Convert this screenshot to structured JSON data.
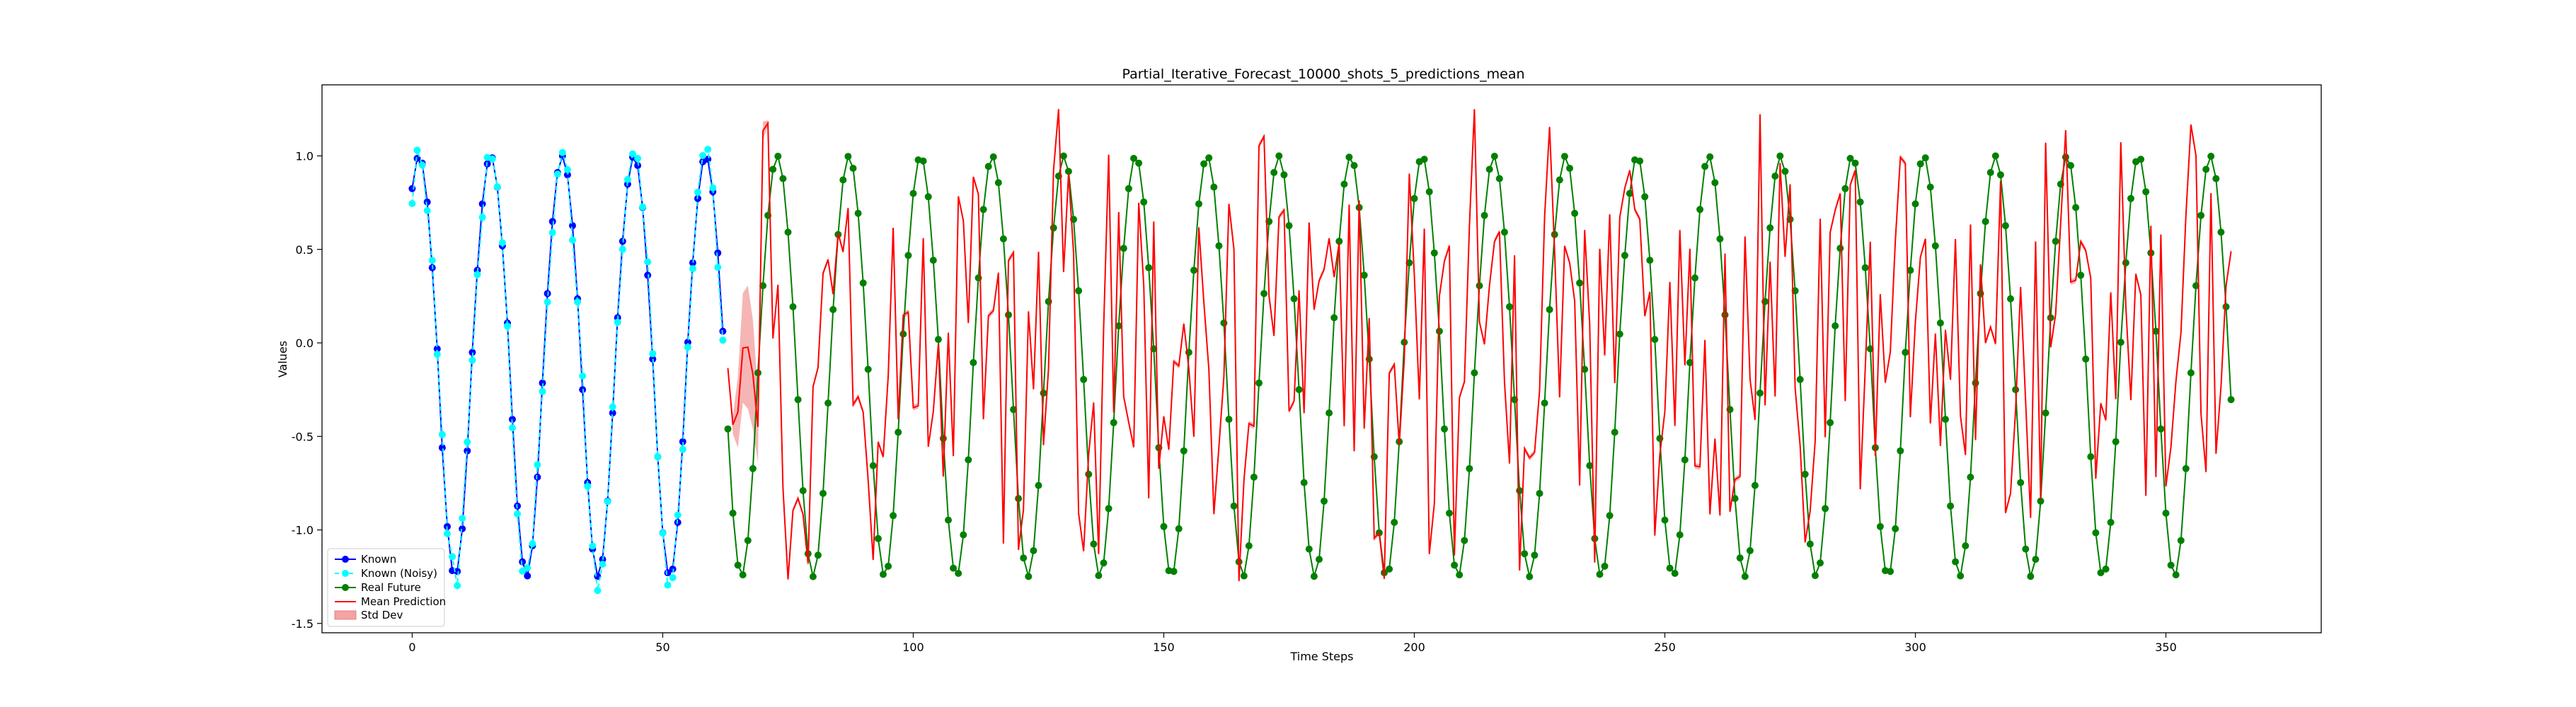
{
  "chart_data": {
    "type": "line",
    "title": "Partial_Iterative_Forecast_10000_shots_5_predictions_mean",
    "xlabel": "Time Steps",
    "ylabel": "Values",
    "xlim": [
      -18,
      381
    ],
    "ylim": [
      -1.55,
      1.38
    ],
    "x_ticks": [
      0,
      50,
      100,
      150,
      200,
      250,
      300,
      350
    ],
    "y_ticks": [
      -1.5,
      -1.0,
      -0.5,
      0.0,
      0.5,
      1.0
    ],
    "grid": false,
    "legend_position": "lower-left",
    "signal_period": 14.3,
    "signal_phase_offset": 0.97,
    "known_x_range": [
      0,
      62
    ],
    "future_x_range": [
      63,
      363
    ],
    "noise_amplitude": 0.08,
    "prediction_peak_amplitude": 1.2,
    "std_dev_band_x_range": [
      64,
      70
    ],
    "colors": {
      "known": "#0000ff",
      "known_noisy": "#00ffff",
      "real_future": "#008000",
      "mean_prediction": "#ff0000",
      "std_dev": "#f4a3a3"
    },
    "series": [
      {
        "name": "Known",
        "marker": "circle",
        "line": "solid",
        "color": "#0000ff"
      },
      {
        "name": "Known (Noisy)",
        "marker": "circle",
        "line": "dashed",
        "color": "#00ffff"
      },
      {
        "name": "Real Future",
        "marker": "circle",
        "line": "solid",
        "color": "#008000"
      },
      {
        "name": "Mean Prediction",
        "marker": "none",
        "line": "solid",
        "color": "#ff0000"
      },
      {
        "name": "Std Dev",
        "marker": "patch",
        "line": "none",
        "color": "#f4a3a3"
      }
    ]
  }
}
